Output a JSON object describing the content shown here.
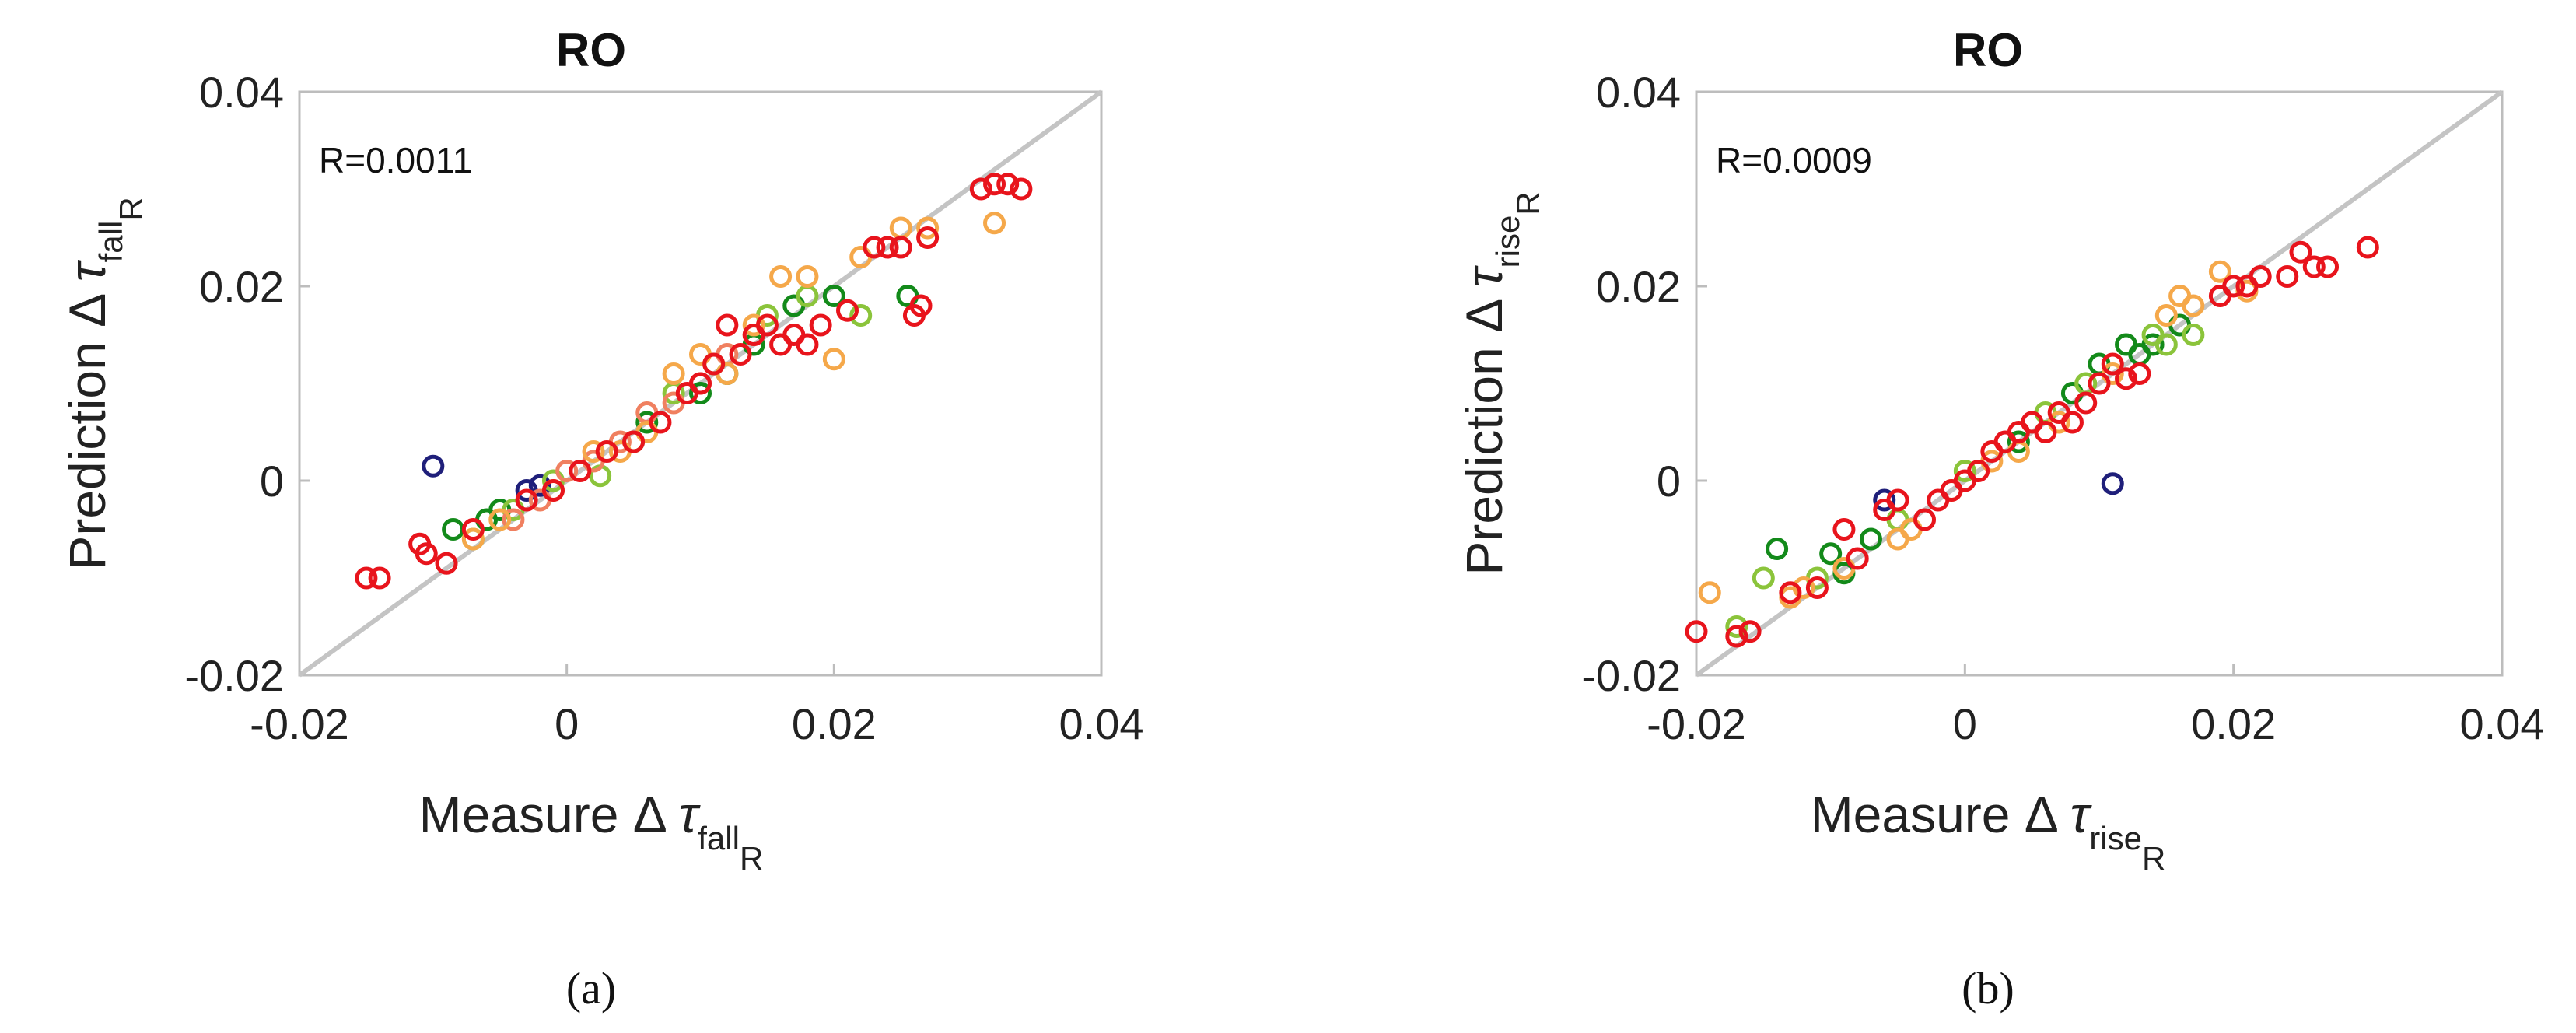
{
  "chart_data": [
    {
      "type": "scatter",
      "panel_label": "(a)",
      "title": "RO",
      "annotation": "R=0.0011",
      "xlabel": {
        "prefix": "Measure Δ ",
        "symbol": "τ",
        "sub": "fall",
        "subsub": "R"
      },
      "ylabel": {
        "prefix": "Prediction Δ ",
        "symbol": "τ",
        "sub": "fall",
        "subsub": "R"
      },
      "xlim": [
        -0.02,
        0.04
      ],
      "ylim": [
        -0.02,
        0.04
      ],
      "xticks": [
        "-0.02",
        "0",
        "0.02",
        "0.04"
      ],
      "yticks": [
        "-0.02",
        "0",
        "0.02",
        "0.04"
      ],
      "reference_line": "y = x",
      "series": [
        {
          "name": "navy",
          "color": "#1f1f7a",
          "points": [
            [
              -0.01,
              0.0015
            ],
            [
              -0.003,
              -0.001
            ],
            [
              -0.002,
              -0.0005
            ]
          ]
        },
        {
          "name": "dark-green",
          "color": "#138a1a",
          "points": [
            [
              -0.0085,
              -0.005
            ],
            [
              -0.006,
              -0.004
            ],
            [
              -0.005,
              -0.003
            ],
            [
              0.006,
              0.006
            ],
            [
              0.01,
              0.009
            ],
            [
              0.012,
              0.011
            ],
            [
              0.014,
              0.014
            ],
            [
              0.017,
              0.018
            ],
            [
              0.02,
              0.019
            ],
            [
              0.0255,
              0.019
            ]
          ]
        },
        {
          "name": "light-green",
          "color": "#8bc43b",
          "points": [
            [
              -0.007,
              -0.006
            ],
            [
              -0.004,
              -0.003
            ],
            [
              -0.001,
              0.0
            ],
            [
              0.0025,
              0.0005
            ],
            [
              0.005,
              0.004
            ],
            [
              0.008,
              0.009
            ],
            [
              0.011,
              0.012
            ],
            [
              0.015,
              0.017
            ],
            [
              0.018,
              0.019
            ],
            [
              0.022,
              0.017
            ]
          ]
        },
        {
          "name": "salmon",
          "color": "#f08060",
          "points": [
            [
              -0.004,
              -0.004
            ],
            [
              -0.002,
              -0.002
            ],
            [
              0.0,
              0.001
            ],
            [
              0.002,
              0.002
            ],
            [
              0.004,
              0.004
            ],
            [
              0.006,
              0.007
            ],
            [
              0.008,
              0.008
            ],
            [
              0.01,
              0.01
            ],
            [
              0.012,
              0.013
            ],
            [
              0.014,
              0.015
            ]
          ]
        },
        {
          "name": "orange",
          "color": "#f5a84a",
          "points": [
            [
              -0.007,
              -0.006
            ],
            [
              -0.005,
              -0.004
            ],
            [
              -0.001,
              -0.001
            ],
            [
              0.002,
              0.003
            ],
            [
              0.004,
              0.003
            ],
            [
              0.006,
              0.005
            ],
            [
              0.008,
              0.011
            ],
            [
              0.01,
              0.013
            ],
            [
              0.012,
              0.011
            ],
            [
              0.014,
              0.016
            ],
            [
              0.016,
              0.021
            ],
            [
              0.018,
              0.021
            ],
            [
              0.02,
              0.0125
            ],
            [
              0.022,
              0.023
            ],
            [
              0.025,
              0.026
            ],
            [
              0.027,
              0.026
            ],
            [
              0.032,
              0.0265
            ]
          ]
        },
        {
          "name": "red",
          "color": "#e8141c",
          "points": [
            [
              -0.015,
              -0.01
            ],
            [
              -0.014,
              -0.01
            ],
            [
              -0.011,
              -0.0065
            ],
            [
              -0.0105,
              -0.0075
            ],
            [
              -0.009,
              -0.0085
            ],
            [
              -0.007,
              -0.005
            ],
            [
              -0.003,
              -0.002
            ],
            [
              -0.001,
              -0.001
            ],
            [
              0.001,
              0.001
            ],
            [
              0.003,
              0.003
            ],
            [
              0.005,
              0.004
            ],
            [
              0.007,
              0.006
            ],
            [
              0.009,
              0.009
            ],
            [
              0.01,
              0.01
            ],
            [
              0.011,
              0.012
            ],
            [
              0.012,
              0.016
            ],
            [
              0.013,
              0.013
            ],
            [
              0.014,
              0.015
            ],
            [
              0.015,
              0.016
            ],
            [
              0.016,
              0.014
            ],
            [
              0.017,
              0.015
            ],
            [
              0.018,
              0.014
            ],
            [
              0.019,
              0.016
            ],
            [
              0.021,
              0.0175
            ],
            [
              0.023,
              0.024
            ],
            [
              0.024,
              0.024
            ],
            [
              0.025,
              0.024
            ],
            [
              0.027,
              0.025
            ],
            [
              0.0265,
              0.018
            ],
            [
              0.026,
              0.017
            ],
            [
              0.031,
              0.03
            ],
            [
              0.032,
              0.0305
            ],
            [
              0.033,
              0.0305
            ],
            [
              0.034,
              0.03
            ]
          ]
        }
      ]
    },
    {
      "type": "scatter",
      "panel_label": "(b)",
      "title": "RO",
      "annotation": "R=0.0009",
      "xlabel": {
        "prefix": "Measure Δ ",
        "symbol": "τ",
        "sub": "rise",
        "subsub": "R"
      },
      "ylabel": {
        "prefix": "Prediction Δ ",
        "symbol": "τ",
        "sub": "rise",
        "subsub": "R"
      },
      "xlim": [
        -0.02,
        0.04
      ],
      "ylim": [
        -0.02,
        0.04
      ],
      "xticks": [
        "-0.02",
        "0",
        "0.02",
        "0.04"
      ],
      "yticks": [
        "-0.02",
        "0",
        "0.02",
        "0.04"
      ],
      "reference_line": "y = x",
      "series": [
        {
          "name": "navy",
          "color": "#1f1f7a",
          "points": [
            [
              -0.006,
              -0.002
            ],
            [
              0.011,
              -0.0003
            ]
          ]
        },
        {
          "name": "dark-green",
          "color": "#138a1a",
          "points": [
            [
              -0.014,
              -0.007
            ],
            [
              -0.01,
              -0.0075
            ],
            [
              -0.009,
              -0.0095
            ],
            [
              -0.007,
              -0.006
            ],
            [
              0.004,
              0.004
            ],
            [
              0.008,
              0.009
            ],
            [
              0.01,
              0.012
            ],
            [
              0.012,
              0.014
            ],
            [
              0.013,
              0.013
            ],
            [
              0.014,
              0.014
            ],
            [
              0.016,
              0.016
            ]
          ]
        },
        {
          "name": "light-green",
          "color": "#8bc43b",
          "points": [
            [
              -0.017,
              -0.015
            ],
            [
              -0.015,
              -0.01
            ],
            [
              -0.011,
              -0.01
            ],
            [
              -0.005,
              -0.004
            ],
            [
              0.0,
              0.001
            ],
            [
              0.006,
              0.007
            ],
            [
              0.009,
              0.01
            ],
            [
              0.014,
              0.015
            ],
            [
              0.015,
              0.014
            ],
            [
              0.017,
              0.015
            ]
          ]
        },
        {
          "name": "orange",
          "color": "#f5a84a",
          "points": [
            [
              -0.019,
              -0.0115
            ],
            [
              -0.013,
              -0.012
            ],
            [
              -0.012,
              -0.011
            ],
            [
              -0.009,
              -0.009
            ],
            [
              -0.005,
              -0.006
            ],
            [
              -0.004,
              -0.005
            ],
            [
              -0.001,
              -0.001
            ],
            [
              0.002,
              0.002
            ],
            [
              0.004,
              0.003
            ],
            [
              0.007,
              0.006
            ],
            [
              0.011,
              0.011
            ],
            [
              0.015,
              0.017
            ],
            [
              0.017,
              0.018
            ],
            [
              0.019,
              0.0215
            ],
            [
              0.021,
              0.0195
            ],
            [
              0.016,
              0.019
            ]
          ]
        },
        {
          "name": "red",
          "color": "#e8141c",
          "points": [
            [
              -0.02,
              -0.0155
            ],
            [
              -0.017,
              -0.016
            ],
            [
              -0.016,
              -0.0155
            ],
            [
              -0.013,
              -0.0115
            ],
            [
              -0.011,
              -0.011
            ],
            [
              -0.009,
              -0.005
            ],
            [
              -0.008,
              -0.008
            ],
            [
              -0.006,
              -0.003
            ],
            [
              -0.005,
              -0.002
            ],
            [
              -0.003,
              -0.004
            ],
            [
              -0.002,
              -0.002
            ],
            [
              -0.001,
              -0.001
            ],
            [
              0.0,
              0.0
            ],
            [
              0.001,
              0.001
            ],
            [
              0.002,
              0.003
            ],
            [
              0.003,
              0.004
            ],
            [
              0.004,
              0.005
            ],
            [
              0.005,
              0.006
            ],
            [
              0.006,
              0.005
            ],
            [
              0.007,
              0.007
            ],
            [
              0.008,
              0.006
            ],
            [
              0.009,
              0.008
            ],
            [
              0.01,
              0.01
            ],
            [
              0.011,
              0.012
            ],
            [
              0.012,
              0.0105
            ],
            [
              0.013,
              0.011
            ],
            [
              0.019,
              0.019
            ],
            [
              0.02,
              0.02
            ],
            [
              0.021,
              0.02
            ],
            [
              0.022,
              0.021
            ],
            [
              0.024,
              0.021
            ],
            [
              0.025,
              0.0235
            ],
            [
              0.026,
              0.022
            ],
            [
              0.027,
              0.022
            ],
            [
              0.03,
              0.024
            ]
          ]
        }
      ]
    }
  ]
}
